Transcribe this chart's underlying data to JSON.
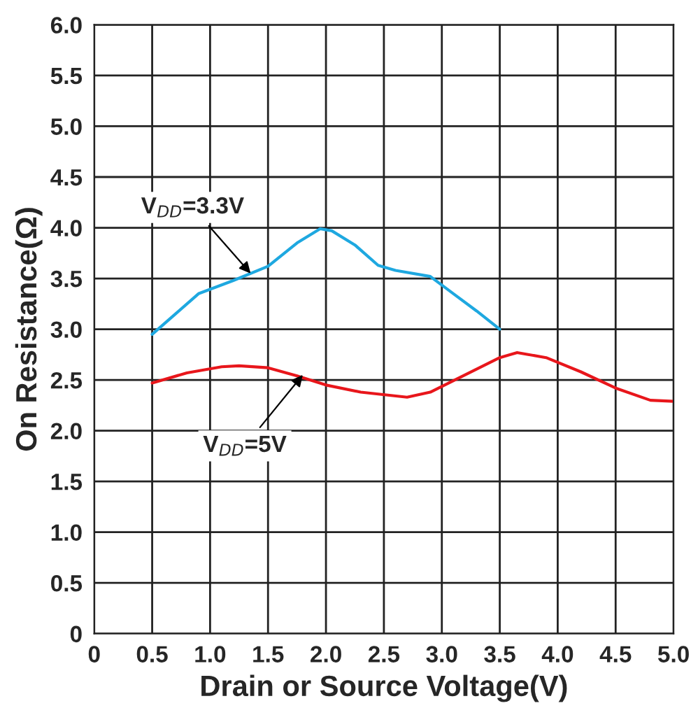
{
  "chart_data": {
    "type": "line",
    "xlabel": "Drain or Source Voltage(V)",
    "ylabel": "On Resistance(Ω)",
    "xlim": [
      0,
      5
    ],
    "ylim": [
      0,
      6
    ],
    "xticks": [
      0,
      {
        "value": 0.5,
        "label": "0.5"
      },
      {
        "value": 1,
        "label": "1.0"
      },
      {
        "value": 1.5,
        "label": "1.5"
      },
      {
        "value": 2,
        "label": "2.0"
      },
      {
        "value": 2.5,
        "label": "2.5"
      },
      {
        "value": 3,
        "label": "3.0"
      },
      {
        "value": 3.5,
        "label": "3.5"
      },
      {
        "value": 4,
        "label": "4.0"
      },
      {
        "value": 4.5,
        "label": "4.5"
      },
      {
        "value": 5,
        "label": "5.0"
      }
    ],
    "yticks": [
      0,
      {
        "value": 0.5,
        "label": "0.5"
      },
      {
        "value": 1,
        "label": "1.0"
      },
      {
        "value": 1.5,
        "label": "1.5"
      },
      {
        "value": 2,
        "label": "2.0"
      },
      {
        "value": 2.5,
        "label": "2.5"
      },
      {
        "value": 3,
        "label": "3.0"
      },
      {
        "value": 3.5,
        "label": "3.5"
      },
      {
        "value": 4,
        "label": "4.0"
      },
      {
        "value": 4.5,
        "label": "4.5"
      },
      {
        "value": 5,
        "label": "5.0"
      },
      {
        "value": 5.5,
        "label": "5.5"
      },
      {
        "value": 6,
        "label": "6.0"
      }
    ],
    "grid": true,
    "line_style": "solid",
    "marker": "none",
    "series": [
      {
        "color": "#1ea8e0",
        "x": [
          0.5,
          0.7,
          0.9,
          1.2,
          1.5,
          1.75,
          1.95,
          2.05,
          2.25,
          2.45,
          2.6,
          2.9,
          3.1,
          3.3,
          3.5
        ],
        "values": [
          2.95,
          3.15,
          3.35,
          3.48,
          3.62,
          3.85,
          3.99,
          3.97,
          3.83,
          3.63,
          3.58,
          3.52,
          3.35,
          3.18,
          3.0
        ]
      },
      {
        "color": "#e8161b",
        "x": [
          0.5,
          0.8,
          1.1,
          1.25,
          1.5,
          1.75,
          2.0,
          2.3,
          2.7,
          2.9,
          3.2,
          3.5,
          3.65,
          3.9,
          4.2,
          4.5,
          4.8,
          5.0
        ],
        "values": [
          2.47,
          2.57,
          2.63,
          2.64,
          2.62,
          2.54,
          2.45,
          2.38,
          2.33,
          2.38,
          2.55,
          2.72,
          2.77,
          2.72,
          2.58,
          2.42,
          2.3,
          2.29
        ]
      }
    ],
    "annotations": [
      {
        "text": "V$_{DD}$=3.3V",
        "x": 1.35,
        "y": 3.55
      },
      {
        "text": "V$_{DD}$=5V",
        "x": 1.8,
        "y": 2.55
      }
    ]
  }
}
